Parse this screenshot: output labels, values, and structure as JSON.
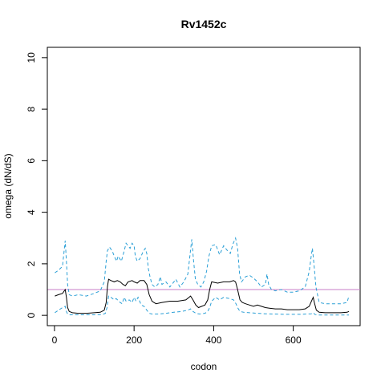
{
  "chart_data": {
    "type": "line",
    "title": "Rv1452c",
    "xlabel": "codon",
    "ylabel": "omega (dN/dS)",
    "xlim": [
      -18,
      768
    ],
    "ylim": [
      -0.4,
      10.4
    ],
    "x_ticks": [
      0,
      200,
      400,
      600
    ],
    "y_ticks": [
      0,
      2,
      4,
      6,
      8,
      10
    ],
    "reference_line": {
      "y": 1,
      "color": "#c77cc7"
    },
    "series": [
      {
        "style": "solid",
        "color": "#000000",
        "points": [
          [
            1,
            0.75
          ],
          [
            10,
            0.8
          ],
          [
            20,
            0.85
          ],
          [
            27,
            1.0
          ],
          [
            30,
            0.7
          ],
          [
            33,
            0.3
          ],
          [
            37,
            0.15
          ],
          [
            45,
            0.1
          ],
          [
            60,
            0.08
          ],
          [
            80,
            0.08
          ],
          [
            100,
            0.1
          ],
          [
            115,
            0.12
          ],
          [
            125,
            0.2
          ],
          [
            130,
            0.5
          ],
          [
            133,
            1.1
          ],
          [
            136,
            1.4
          ],
          [
            142,
            1.35
          ],
          [
            150,
            1.3
          ],
          [
            158,
            1.35
          ],
          [
            165,
            1.3
          ],
          [
            172,
            1.2
          ],
          [
            178,
            1.15
          ],
          [
            185,
            1.3
          ],
          [
            195,
            1.35
          ],
          [
            200,
            1.3
          ],
          [
            208,
            1.25
          ],
          [
            215,
            1.35
          ],
          [
            225,
            1.35
          ],
          [
            232,
            1.2
          ],
          [
            238,
            0.8
          ],
          [
            245,
            0.55
          ],
          [
            255,
            0.45
          ],
          [
            270,
            0.5
          ],
          [
            290,
            0.55
          ],
          [
            310,
            0.55
          ],
          [
            330,
            0.6
          ],
          [
            342,
            0.75
          ],
          [
            348,
            0.6
          ],
          [
            355,
            0.4
          ],
          [
            362,
            0.3
          ],
          [
            370,
            0.35
          ],
          [
            378,
            0.4
          ],
          [
            385,
            0.6
          ],
          [
            390,
            1.0
          ],
          [
            395,
            1.3
          ],
          [
            410,
            1.25
          ],
          [
            425,
            1.3
          ],
          [
            440,
            1.3
          ],
          [
            450,
            1.35
          ],
          [
            455,
            1.3
          ],
          [
            460,
            1.0
          ],
          [
            466,
            0.6
          ],
          [
            472,
            0.5
          ],
          [
            480,
            0.45
          ],
          [
            490,
            0.4
          ],
          [
            500,
            0.35
          ],
          [
            510,
            0.4
          ],
          [
            520,
            0.35
          ],
          [
            530,
            0.3
          ],
          [
            540,
            0.28
          ],
          [
            555,
            0.25
          ],
          [
            570,
            0.25
          ],
          [
            585,
            0.22
          ],
          [
            600,
            0.22
          ],
          [
            615,
            0.22
          ],
          [
            630,
            0.25
          ],
          [
            640,
            0.35
          ],
          [
            647,
            0.6
          ],
          [
            650,
            0.7
          ],
          [
            653,
            0.5
          ],
          [
            658,
            0.2
          ],
          [
            665,
            0.12
          ],
          [
            680,
            0.1
          ],
          [
            700,
            0.1
          ],
          [
            720,
            0.1
          ],
          [
            735,
            0.12
          ],
          [
            740,
            0.15
          ]
        ]
      },
      {
        "style": "dashed",
        "color": "#2a9fd6",
        "points": [
          [
            1,
            1.65
          ],
          [
            10,
            1.75
          ],
          [
            20,
            1.9
          ],
          [
            27,
            2.9
          ],
          [
            30,
            2.1
          ],
          [
            33,
            1.2
          ],
          [
            37,
            0.8
          ],
          [
            45,
            0.75
          ],
          [
            60,
            0.8
          ],
          [
            80,
            0.75
          ],
          [
            100,
            0.85
          ],
          [
            115,
            0.95
          ],
          [
            125,
            1.3
          ],
          [
            130,
            2.1
          ],
          [
            133,
            2.5
          ],
          [
            138,
            2.65
          ],
          [
            145,
            2.5
          ],
          [
            150,
            2.3
          ],
          [
            156,
            2.1
          ],
          [
            160,
            2.3
          ],
          [
            168,
            2.1
          ],
          [
            175,
            2.5
          ],
          [
            180,
            2.8
          ],
          [
            190,
            2.6
          ],
          [
            195,
            2.8
          ],
          [
            200,
            2.7
          ],
          [
            203,
            2.3
          ],
          [
            208,
            2.1
          ],
          [
            215,
            2.2
          ],
          [
            222,
            2.45
          ],
          [
            228,
            2.6
          ],
          [
            232,
            2.4
          ],
          [
            236,
            1.8
          ],
          [
            240,
            1.5
          ],
          [
            245,
            1.2
          ],
          [
            252,
            1.1
          ],
          [
            260,
            1.2
          ],
          [
            266,
            1.5
          ],
          [
            270,
            1.2
          ],
          [
            280,
            1.3
          ],
          [
            290,
            1.1
          ],
          [
            300,
            1.3
          ],
          [
            305,
            1.4
          ],
          [
            315,
            1.1
          ],
          [
            325,
            1.3
          ],
          [
            335,
            1.6
          ],
          [
            341,
            2.4
          ],
          [
            345,
            2.95
          ],
          [
            349,
            2.2
          ],
          [
            354,
            1.4
          ],
          [
            360,
            1.2
          ],
          [
            368,
            1.1
          ],
          [
            375,
            1.3
          ],
          [
            382,
            1.7
          ],
          [
            388,
            2.3
          ],
          [
            395,
            2.7
          ],
          [
            405,
            2.75
          ],
          [
            415,
            2.35
          ],
          [
            425,
            2.7
          ],
          [
            435,
            2.5
          ],
          [
            442,
            2.4
          ],
          [
            448,
            2.75
          ],
          [
            455,
            3.0
          ],
          [
            460,
            2.6
          ],
          [
            465,
            1.6
          ],
          [
            470,
            1.3
          ],
          [
            480,
            1.5
          ],
          [
            490,
            1.55
          ],
          [
            500,
            1.45
          ],
          [
            510,
            1.3
          ],
          [
            520,
            1.1
          ],
          [
            530,
            1.2
          ],
          [
            534,
            1.6
          ],
          [
            538,
            1.2
          ],
          [
            545,
            1.0
          ],
          [
            555,
            0.95
          ],
          [
            570,
            1.0
          ],
          [
            585,
            0.9
          ],
          [
            600,
            0.9
          ],
          [
            615,
            0.95
          ],
          [
            630,
            1.1
          ],
          [
            640,
            1.7
          ],
          [
            645,
            2.3
          ],
          [
            648,
            2.6
          ],
          [
            652,
            2.0
          ],
          [
            657,
            1.1
          ],
          [
            665,
            0.5
          ],
          [
            680,
            0.45
          ],
          [
            700,
            0.45
          ],
          [
            720,
            0.45
          ],
          [
            735,
            0.5
          ],
          [
            740,
            0.75
          ]
        ]
      },
      {
        "style": "dashed",
        "color": "#2a9fd6",
        "points": [
          [
            1,
            0.1
          ],
          [
            10,
            0.2
          ],
          [
            20,
            0.3
          ],
          [
            27,
            0.35
          ],
          [
            30,
            0.15
          ],
          [
            33,
            0.05
          ],
          [
            37,
            0.02
          ],
          [
            60,
            0.02
          ],
          [
            100,
            0.02
          ],
          [
            120,
            0.03
          ],
          [
            128,
            0.08
          ],
          [
            132,
            0.3
          ],
          [
            136,
            0.75
          ],
          [
            142,
            0.7
          ],
          [
            150,
            0.6
          ],
          [
            155,
            0.65
          ],
          [
            165,
            0.5
          ],
          [
            170,
            0.45
          ],
          [
            175,
            0.7
          ],
          [
            180,
            0.55
          ],
          [
            188,
            0.6
          ],
          [
            195,
            0.5
          ],
          [
            200,
            0.7
          ],
          [
            205,
            0.55
          ],
          [
            210,
            0.7
          ],
          [
            218,
            0.4
          ],
          [
            225,
            0.35
          ],
          [
            232,
            0.2
          ],
          [
            238,
            0.08
          ],
          [
            245,
            0.05
          ],
          [
            260,
            0.05
          ],
          [
            280,
            0.08
          ],
          [
            300,
            0.12
          ],
          [
            320,
            0.15
          ],
          [
            335,
            0.2
          ],
          [
            342,
            0.25
          ],
          [
            348,
            0.15
          ],
          [
            356,
            0.07
          ],
          [
            365,
            0.05
          ],
          [
            378,
            0.08
          ],
          [
            385,
            0.15
          ],
          [
            390,
            0.3
          ],
          [
            395,
            0.55
          ],
          [
            405,
            0.7
          ],
          [
            415,
            0.6
          ],
          [
            425,
            0.7
          ],
          [
            440,
            0.65
          ],
          [
            450,
            0.6
          ],
          [
            456,
            0.45
          ],
          [
            460,
            0.3
          ],
          [
            466,
            0.15
          ],
          [
            475,
            0.12
          ],
          [
            490,
            0.1
          ],
          [
            510,
            0.08
          ],
          [
            530,
            0.06
          ],
          [
            550,
            0.05
          ],
          [
            580,
            0.04
          ],
          [
            620,
            0.04
          ],
          [
            645,
            0.06
          ],
          [
            650,
            0.1
          ],
          [
            655,
            0.03
          ],
          [
            665,
            0.01
          ],
          [
            700,
            0.01
          ],
          [
            740,
            0.01
          ]
        ]
      }
    ],
    "grid": false,
    "legend": "none"
  }
}
